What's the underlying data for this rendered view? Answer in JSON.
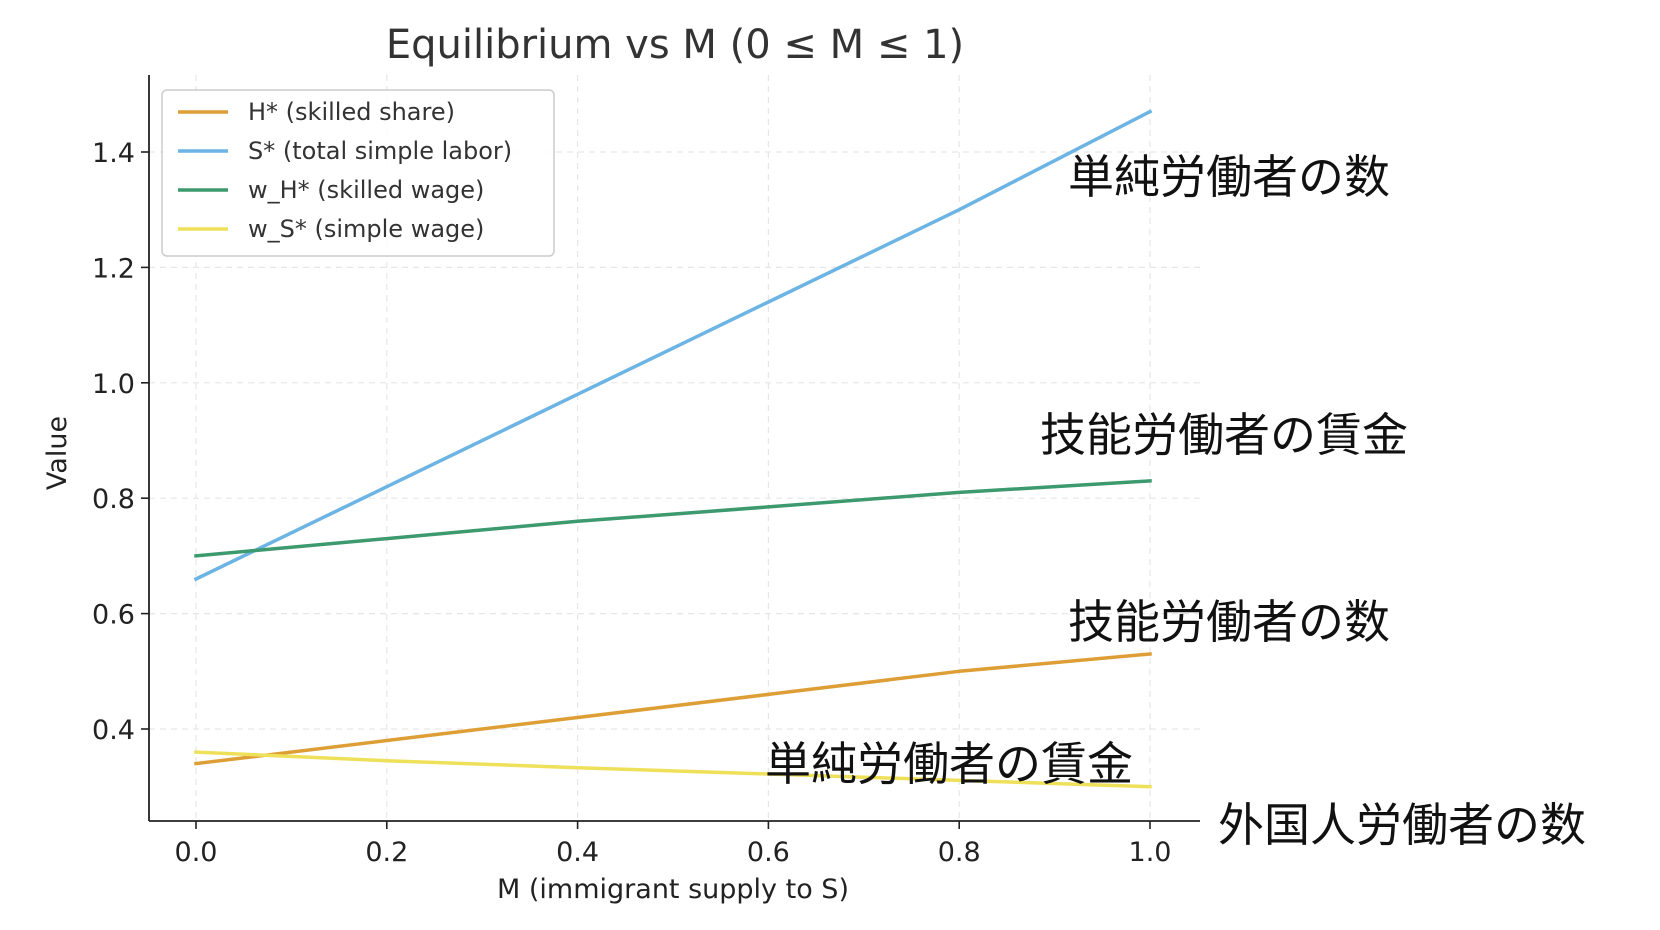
{
  "chart_data": {
    "type": "line",
    "title": "Equilibrium vs M (0 ≤ M ≤ 1)",
    "xlabel": "M (immigrant supply to S)",
    "ylabel": "Value",
    "xlim": [
      -0.05,
      1.05
    ],
    "ylim": [
      0.26,
      1.53
    ],
    "x_ticks": [
      "0.0",
      "0.2",
      "0.4",
      "0.6",
      "0.8",
      "1.0"
    ],
    "y_ticks": [
      "0.4",
      "0.6",
      "0.8",
      "1.0",
      "1.2",
      "1.4"
    ],
    "grid": true,
    "legend_position": "upper-left",
    "x": [
      0.0,
      0.2,
      0.4,
      0.6,
      0.8,
      1.0
    ],
    "series": [
      {
        "name": "H* (skilled share)",
        "color": "#DE9E36",
        "values": [
          0.34,
          0.38,
          0.42,
          0.46,
          0.5,
          0.53
        ]
      },
      {
        "name": "S* (total simple labor)",
        "color": "#6CB4E4",
        "values": [
          0.66,
          0.82,
          0.98,
          1.14,
          1.3,
          1.47
        ]
      },
      {
        "name": "w_H* (skilled wage)",
        "color": "#3C9A6E",
        "values": [
          0.7,
          0.73,
          0.76,
          0.785,
          0.81,
          0.83
        ]
      },
      {
        "name": "w_S* (simple wage)",
        "color": "#EFE05A",
        "values": [
          0.36,
          0.345,
          0.333,
          0.322,
          0.311,
          0.3
        ]
      }
    ],
    "annotations": [
      "単純労働者の数",
      "技能労働者の賃金",
      "技能労働者の数",
      "単純労働者の賃金",
      "外国人労働者の数"
    ]
  }
}
